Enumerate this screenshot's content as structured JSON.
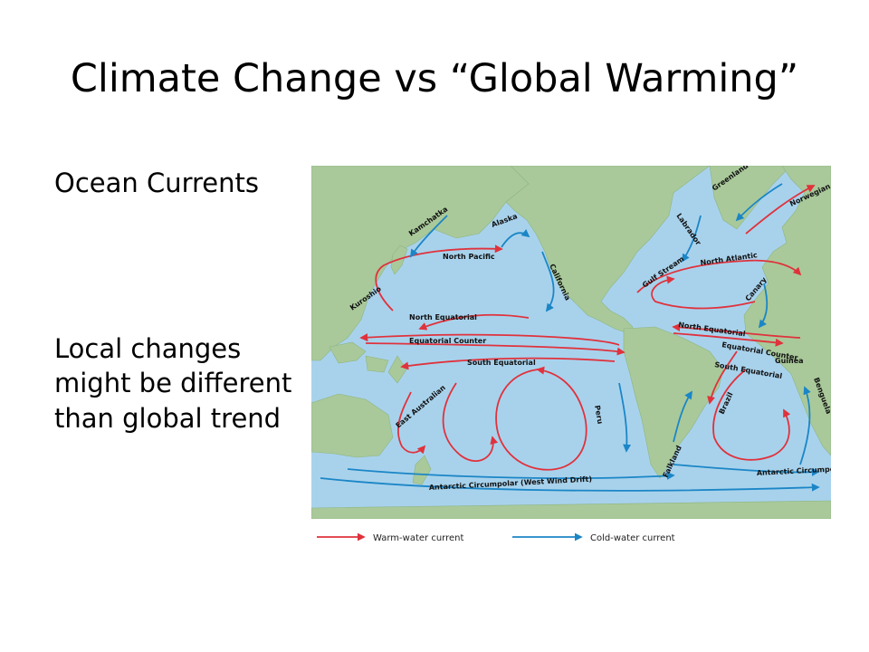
{
  "slide": {
    "title": "Climate Change vs “Global Warming”",
    "bullets": [
      "Ocean Currents",
      "Local changes might be different than global trend"
    ]
  },
  "map": {
    "colors": {
      "ocean": "#a8d2ec",
      "land": "#a9c99a",
      "warm": "#e0323c",
      "cold": "#1b86c6"
    },
    "current_labels": [
      "Kamchatka",
      "Alaska",
      "North Pacific",
      "California",
      "Kuroshio",
      "North Equatorial",
      "Equatorial Counter",
      "South Equatorial",
      "East Australian",
      "Peru",
      "Antarctic Circumpolar (West Wind Drift)",
      "Greenland",
      "Norwegian",
      "Labrador",
      "Gulf Stream",
      "North Atlantic",
      "Canary",
      "North Equatorial",
      "Equatorial Counter",
      "South Equatorial",
      "Guinea",
      "Benguela",
      "Brazil",
      "Falkland",
      "Antarctic Circumpo"
    ],
    "legend": {
      "warm_label": "Warm-water current",
      "cold_label": "Cold-water current"
    }
  }
}
